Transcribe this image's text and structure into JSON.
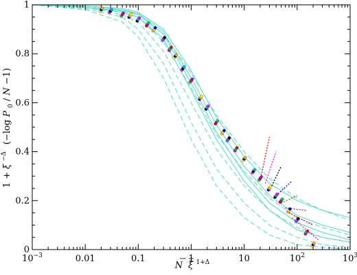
{
  "chart_data": {
    "type": "line",
    "title": "",
    "x_scale": "log",
    "xlim": [
      0.001,
      1000
    ],
    "ylim": [
      0,
      1
    ],
    "grid": false,
    "xlabel": {
      "bar_N": "N",
      "xi": "ξ",
      "power": "1+Δ"
    },
    "ylabel": {
      "one_plus": "1 + ",
      "xi": "ξ",
      "power": "−Δ",
      "open": "(−log ",
      "P": "P",
      "P_sub": "0",
      "slash": "/",
      "bar_N": "N",
      "close": "−1)"
    },
    "x_ticks": [
      {
        "value": 0.001,
        "label": "10",
        "exp": "−3"
      },
      {
        "value": 0.01,
        "label": "0.01",
        "exp": ""
      },
      {
        "value": 0.1,
        "label": "0.1",
        "exp": ""
      },
      {
        "value": 1,
        "label": "1",
        "exp": ""
      },
      {
        "value": 10,
        "label": "10",
        "exp": ""
      },
      {
        "value": 100,
        "label": "10",
        "exp": "2"
      },
      {
        "value": 1000,
        "label": "10",
        "exp": "3"
      }
    ],
    "y_ticks": [
      {
        "value": 0,
        "label": "0"
      },
      {
        "value": 0.2,
        "label": "0.2"
      },
      {
        "value": 0.4,
        "label": "0.4"
      },
      {
        "value": 0.6,
        "label": "0.6"
      },
      {
        "value": 0.8,
        "label": "0.8"
      },
      {
        "value": 1,
        "label": "1"
      }
    ],
    "model_curves": {
      "color": "#66e0cc",
      "solid": [
        {
          "x": [
            0.001,
            0.01,
            0.05,
            0.1,
            0.3,
            1,
            3,
            10,
            30,
            100,
            300,
            1000
          ],
          "y": [
            1.0,
            0.995,
            0.985,
            0.97,
            0.9,
            0.73,
            0.54,
            0.38,
            0.27,
            0.2,
            0.16,
            0.13
          ]
        },
        {
          "x": [
            0.001,
            0.01,
            0.05,
            0.1,
            0.3,
            1,
            3,
            10,
            30,
            100,
            300,
            1000
          ],
          "y": [
            1.0,
            0.995,
            0.98,
            0.965,
            0.89,
            0.7,
            0.51,
            0.34,
            0.22,
            0.14,
            0.1,
            0.07
          ]
        },
        {
          "x": [
            0.001,
            0.01,
            0.05,
            0.1,
            0.3,
            1,
            3,
            10,
            30,
            100,
            300,
            1000
          ],
          "y": [
            1.0,
            0.99,
            0.975,
            0.96,
            0.88,
            0.68,
            0.48,
            0.31,
            0.19,
            0.11,
            0.07,
            0.04
          ]
        },
        {
          "x": [
            0.001,
            0.01,
            0.05,
            0.1,
            0.3,
            1,
            3,
            10,
            30,
            100,
            300,
            1000
          ],
          "y": [
            1.0,
            0.99,
            0.97,
            0.95,
            0.86,
            0.65,
            0.45,
            0.28,
            0.16,
            0.08,
            0.05,
            0.03
          ]
        }
      ],
      "dashed": [
        {
          "x": [
            0.001,
            0.01,
            0.05,
            0.1,
            0.3,
            1,
            3,
            10,
            30,
            100,
            300,
            1000
          ],
          "y": [
            1.0,
            0.995,
            0.98,
            0.96,
            0.88,
            0.72,
            0.55,
            0.4,
            0.29,
            0.21,
            0.16,
            0.12
          ]
        },
        {
          "x": [
            0.001,
            0.01,
            0.05,
            0.1,
            0.3,
            1,
            3,
            10,
            30,
            100,
            300,
            1000
          ],
          "y": [
            1.0,
            0.99,
            0.97,
            0.95,
            0.85,
            0.66,
            0.47,
            0.32,
            0.21,
            0.13,
            0.09,
            0.06
          ]
        },
        {
          "x": [
            0.001,
            0.01,
            0.05,
            0.1,
            0.3,
            1,
            3,
            10,
            30,
            100,
            300,
            1000
          ],
          "y": [
            1.0,
            0.99,
            0.96,
            0.93,
            0.81,
            0.6,
            0.41,
            0.26,
            0.16,
            0.09,
            0.05,
            0.03
          ]
        },
        {
          "x": [
            0.001,
            0.01,
            0.05,
            0.1,
            0.3,
            1,
            3,
            10,
            30,
            100,
            300,
            1000
          ],
          "y": [
            1.0,
            0.985,
            0.95,
            0.9,
            0.76,
            0.52,
            0.33,
            0.19,
            0.1,
            0.05,
            0.02,
            0.01
          ]
        },
        {
          "x": [
            0.001,
            0.01,
            0.05,
            0.1,
            0.3,
            1,
            3,
            10,
            30,
            100,
            300,
            1000
          ],
          "y": [
            1.0,
            0.98,
            0.93,
            0.87,
            0.7,
            0.45,
            0.26,
            0.13,
            0.06,
            0.02,
            0.01,
            0.0
          ]
        }
      ]
    },
    "data_points": {
      "x": [
        0.02,
        0.03,
        0.05,
        0.07,
        0.1,
        0.15,
        0.2,
        0.3,
        0.4,
        0.5,
        0.7,
        1,
        1.5,
        2,
        3,
        4,
        5,
        7,
        10,
        15,
        20,
        30,
        40,
        50,
        70,
        100,
        150,
        200
      ],
      "y": [
        0.98,
        0.975,
        0.96,
        0.955,
        0.94,
        0.92,
        0.9,
        0.86,
        0.82,
        0.79,
        0.74,
        0.69,
        0.62,
        0.58,
        0.52,
        0.48,
        0.45,
        0.41,
        0.37,
        0.32,
        0.29,
        0.25,
        0.22,
        0.2,
        0.16,
        0.12,
        0.07,
        0.02
      ],
      "colors": [
        "#ffee00",
        "#ff00ff",
        "#00cc44",
        "#0000ff",
        "#000000",
        "#ff0000",
        "#ffaa00",
        "#00aaff",
        "#aa00ff"
      ]
    },
    "tail_segments": {
      "colors": [
        "#ff0000",
        "#ff00ff",
        "#000000",
        "#0000ff",
        "#00aa00",
        "#aa00ff"
      ],
      "x_start": [
        20,
        25,
        30,
        40,
        50,
        60,
        70,
        80
      ],
      "y_start": [
        0.28,
        0.27,
        0.24,
        0.22,
        0.19,
        0.17,
        0.15,
        0.13
      ],
      "y_end": [
        0.46,
        0.4,
        0.34,
        0.28,
        0.22,
        0.16,
        0.1,
        0.04
      ],
      "x_end": [
        30,
        40,
        50,
        80,
        100,
        150,
        200,
        250
      ]
    }
  }
}
